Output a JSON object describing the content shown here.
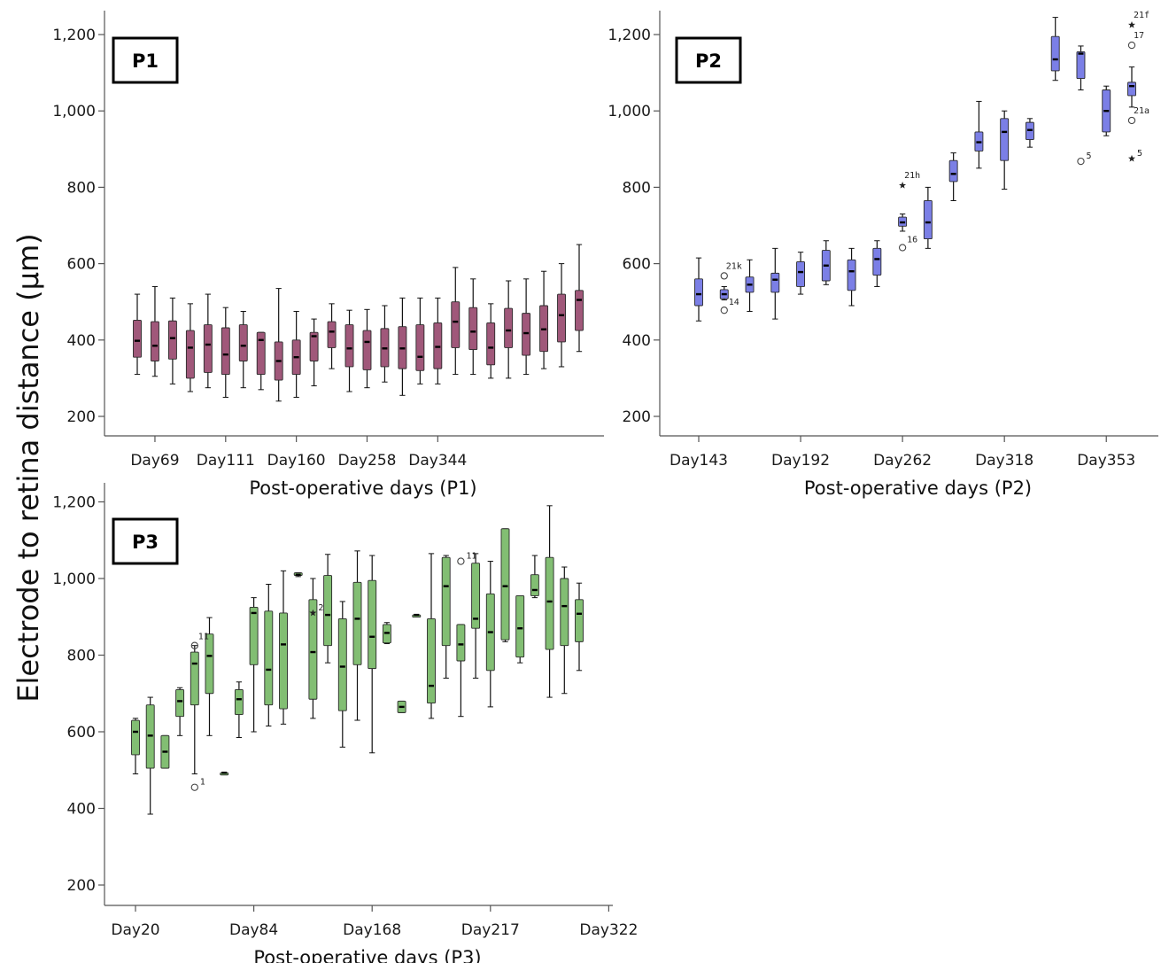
{
  "ylabel": "Electrode to retina distance (μm)",
  "colors": {
    "P1": "#a0587a",
    "P2": "#7b7fe6",
    "P3": "#82be73",
    "axis": "#555555",
    "whisker": "#111111"
  },
  "chart_data": [
    {
      "type": "box",
      "panel": "P1",
      "xlabel": "Post-operative days (P1)",
      "ylim": [
        150,
        1260
      ],
      "yticks": [
        200,
        400,
        600,
        800,
        1000,
        1200
      ],
      "ytick_labels": [
        "200",
        "400",
        "600",
        "800",
        "1,000",
        "1,200"
      ],
      "xtick_labels": [
        {
          "index": 1,
          "label": "Day69"
        },
        {
          "index": 5,
          "label": "Day111"
        },
        {
          "index": 9,
          "label": "Day160"
        },
        {
          "index": 13,
          "label": "Day258"
        },
        {
          "index": 17,
          "label": "Day344"
        }
      ],
      "boxes": [
        {
          "i": 0,
          "min": 310,
          "q1": 355,
          "median": 398,
          "q3": 452,
          "max": 520
        },
        {
          "i": 1,
          "min": 305,
          "q1": 345,
          "median": 385,
          "q3": 448,
          "max": 540
        },
        {
          "i": 2,
          "min": 285,
          "q1": 350,
          "median": 405,
          "q3": 450,
          "max": 510
        },
        {
          "i": 3,
          "min": 265,
          "q1": 300,
          "median": 380,
          "q3": 425,
          "max": 495
        },
        {
          "i": 4,
          "min": 275,
          "q1": 315,
          "median": 388,
          "q3": 440,
          "max": 520
        },
        {
          "i": 5,
          "min": 250,
          "q1": 310,
          "median": 362,
          "q3": 432,
          "max": 485
        },
        {
          "i": 6,
          "min": 275,
          "q1": 345,
          "median": 385,
          "q3": 440,
          "max": 475
        },
        {
          "i": 7,
          "min": 270,
          "q1": 310,
          "median": 400,
          "q3": 420,
          "max": 420
        },
        {
          "i": 8,
          "min": 240,
          "q1": 295,
          "median": 345,
          "q3": 395,
          "max": 535
        },
        {
          "i": 9,
          "min": 250,
          "q1": 310,
          "median": 355,
          "q3": 400,
          "max": 475
        },
        {
          "i": 10,
          "min": 280,
          "q1": 345,
          "median": 410,
          "q3": 420,
          "max": 455
        },
        {
          "i": 11,
          "min": 325,
          "q1": 380,
          "median": 422,
          "q3": 448,
          "max": 495
        },
        {
          "i": 12,
          "min": 265,
          "q1": 330,
          "median": 378,
          "q3": 440,
          "max": 478
        },
        {
          "i": 13,
          "min": 275,
          "q1": 322,
          "median": 395,
          "q3": 425,
          "max": 480
        },
        {
          "i": 14,
          "min": 290,
          "q1": 330,
          "median": 378,
          "q3": 430,
          "max": 490
        },
        {
          "i": 15,
          "min": 255,
          "q1": 325,
          "median": 378,
          "q3": 435,
          "max": 510
        },
        {
          "i": 16,
          "min": 285,
          "q1": 320,
          "median": 356,
          "q3": 440,
          "max": 510
        },
        {
          "i": 17,
          "min": 285,
          "q1": 325,
          "median": 382,
          "q3": 445,
          "max": 510
        },
        {
          "i": 18,
          "min": 310,
          "q1": 380,
          "median": 448,
          "q3": 500,
          "max": 590
        },
        {
          "i": 19,
          "min": 310,
          "q1": 375,
          "median": 422,
          "q3": 485,
          "max": 560
        },
        {
          "i": 20,
          "min": 300,
          "q1": 335,
          "median": 380,
          "q3": 445,
          "max": 495
        },
        {
          "i": 21,
          "min": 300,
          "q1": 380,
          "median": 425,
          "q3": 483,
          "max": 555
        },
        {
          "i": 22,
          "min": 310,
          "q1": 360,
          "median": 418,
          "q3": 470,
          "max": 560
        },
        {
          "i": 23,
          "min": 325,
          "q1": 370,
          "median": 428,
          "q3": 490,
          "max": 580
        },
        {
          "i": 24,
          "min": 330,
          "q1": 395,
          "median": 465,
          "q3": 520,
          "max": 600
        },
        {
          "i": 25,
          "min": 370,
          "q1": 425,
          "median": 505,
          "q3": 530,
          "max": 650
        }
      ]
    },
    {
      "type": "box",
      "panel": "P2",
      "xlabel": "Post-operative days (P2)",
      "ylim": [
        150,
        1260
      ],
      "yticks": [
        200,
        400,
        600,
        800,
        1000,
        1200
      ],
      "ytick_labels": [
        "200",
        "400",
        "600",
        "800",
        "1,000",
        "1,200"
      ],
      "xtick_labels": [
        {
          "index": 0,
          "label": "Day143"
        },
        {
          "index": 4,
          "label": "Day192"
        },
        {
          "index": 8,
          "label": "Day262"
        },
        {
          "index": 12,
          "label": "Day318"
        },
        {
          "index": 16,
          "label": "Day353"
        }
      ],
      "boxes": [
        {
          "i": 0,
          "min": 450,
          "q1": 490,
          "median": 520,
          "q3": 560,
          "max": 615
        },
        {
          "i": 1,
          "min": 505,
          "q1": 508,
          "median": 520,
          "q3": 532,
          "max": 540
        },
        {
          "i": 2,
          "min": 475,
          "q1": 525,
          "median": 545,
          "q3": 565,
          "max": 610
        },
        {
          "i": 3,
          "min": 455,
          "q1": 525,
          "median": 558,
          "q3": 575,
          "max": 640
        },
        {
          "i": 4,
          "min": 520,
          "q1": 540,
          "median": 578,
          "q3": 605,
          "max": 630
        },
        {
          "i": 5,
          "min": 545,
          "q1": 555,
          "median": 595,
          "q3": 635,
          "max": 660
        },
        {
          "i": 6,
          "min": 490,
          "q1": 530,
          "median": 580,
          "q3": 610,
          "max": 640
        },
        {
          "i": 7,
          "min": 540,
          "q1": 570,
          "median": 612,
          "q3": 640,
          "max": 660
        },
        {
          "i": 8,
          "min": 685,
          "q1": 698,
          "median": 708,
          "q3": 722,
          "max": 730
        },
        {
          "i": 9,
          "min": 640,
          "q1": 665,
          "median": 708,
          "q3": 765,
          "max": 800
        },
        {
          "i": 10,
          "min": 765,
          "q1": 815,
          "median": 835,
          "q3": 870,
          "max": 890
        },
        {
          "i": 11,
          "min": 850,
          "q1": 895,
          "median": 918,
          "q3": 945,
          "max": 1025
        },
        {
          "i": 12,
          "min": 795,
          "q1": 870,
          "median": 945,
          "q3": 980,
          "max": 1000
        },
        {
          "i": 13,
          "min": 905,
          "q1": 925,
          "median": 950,
          "q3": 970,
          "max": 980
        },
        {
          "i": 14,
          "min": 1080,
          "q1": 1105,
          "median": 1135,
          "q3": 1195,
          "max": 1245
        },
        {
          "i": 15,
          "min": 1055,
          "q1": 1085,
          "median": 1150,
          "q3": 1155,
          "max": 1170
        },
        {
          "i": 16,
          "min": 935,
          "q1": 945,
          "median": 1000,
          "q3": 1055,
          "max": 1065
        },
        {
          "i": 17,
          "min": 1010,
          "q1": 1040,
          "median": 1065,
          "q3": 1075,
          "max": 1115
        }
      ],
      "outliers": [
        {
          "i": 1,
          "value": 568,
          "marker": "circle",
          "label": "21k",
          "label_side": "above"
        },
        {
          "i": 1,
          "value": 478,
          "marker": "circle",
          "label": "14",
          "label_side": "upper-right"
        },
        {
          "i": 8,
          "value": 805,
          "marker": "star",
          "label": "21h",
          "label_side": "above"
        },
        {
          "i": 8,
          "value": 642,
          "marker": "circle",
          "label": "16",
          "label_side": "upper-right"
        },
        {
          "i": 15,
          "value": 868,
          "marker": "circle",
          "label": "5",
          "label_side": "right"
        },
        {
          "i": 17,
          "value": 1225,
          "marker": "star",
          "label": "21f",
          "label_side": "above"
        },
        {
          "i": 17,
          "value": 1172,
          "marker": "circle",
          "label": "17",
          "label_side": "above"
        },
        {
          "i": 17,
          "value": 975,
          "marker": "circle",
          "label": "21a",
          "label_side": "above"
        },
        {
          "i": 17,
          "value": 875,
          "marker": "star",
          "label": "5",
          "label_side": "right"
        }
      ]
    },
    {
      "type": "box",
      "panel": "P3",
      "xlabel": "Post-operative days (P3)",
      "ylim": [
        150,
        1220
      ],
      "yticks": [
        200,
        400,
        600,
        800,
        1000,
        1200
      ],
      "ytick_labels": [
        "200",
        "400",
        "600",
        "800",
        "1,000",
        "1,200"
      ],
      "xtick_labels": [
        {
          "index": 0,
          "label": "Day20"
        },
        {
          "index": 8,
          "label": "Day84"
        },
        {
          "index": 16,
          "label": "Day168"
        },
        {
          "index": 24,
          "label": "Day217"
        },
        {
          "index": 32,
          "label": "Day322"
        }
      ],
      "boxes": [
        {
          "i": 0,
          "min": 490,
          "q1": 540,
          "median": 600,
          "q3": 630,
          "max": 635
        },
        {
          "i": 1,
          "min": 385,
          "q1": 505,
          "median": 590,
          "q3": 670,
          "max": 690
        },
        {
          "i": 2,
          "min": 505,
          "q1": 505,
          "median": 548,
          "q3": 590,
          "max": 590
        },
        {
          "i": 3,
          "min": 590,
          "q1": 640,
          "median": 680,
          "q3": 710,
          "max": 715
        },
        {
          "i": 4,
          "min": 490,
          "q1": 670,
          "median": 778,
          "q3": 808,
          "max": 825
        },
        {
          "i": 5,
          "min": 590,
          "q1": 700,
          "median": 798,
          "q3": 855,
          "max": 898
        },
        {
          "i": 6,
          "min": 493,
          "q1": 493,
          "median": 493,
          "q3": 493,
          "max": 493
        },
        {
          "i": 7,
          "min": 585,
          "q1": 645,
          "median": 685,
          "q3": 710,
          "max": 730
        },
        {
          "i": 8,
          "min": 600,
          "q1": 775,
          "median": 910,
          "q3": 925,
          "max": 950
        },
        {
          "i": 9,
          "min": 615,
          "q1": 670,
          "median": 762,
          "q3": 915,
          "max": 985
        },
        {
          "i": 10,
          "min": 620,
          "q1": 660,
          "median": 828,
          "q3": 910,
          "max": 1020
        },
        {
          "i": 11,
          "min": 1005,
          "q1": 1008,
          "median": 1010,
          "q3": 1015,
          "max": 1015
        },
        {
          "i": 12,
          "min": 635,
          "q1": 685,
          "median": 808,
          "q3": 945,
          "max": 1000
        },
        {
          "i": 13,
          "min": 780,
          "q1": 825,
          "median": 905,
          "q3": 1008,
          "max": 1063
        },
        {
          "i": 14,
          "min": 560,
          "q1": 655,
          "median": 770,
          "q3": 895,
          "max": 940
        },
        {
          "i": 15,
          "min": 630,
          "q1": 775,
          "median": 895,
          "q3": 990,
          "max": 1072
        },
        {
          "i": 16,
          "min": 545,
          "q1": 765,
          "median": 848,
          "q3": 995,
          "max": 1060
        },
        {
          "i": 17,
          "min": 830,
          "q1": 832,
          "median": 858,
          "q3": 880,
          "max": 885
        },
        {
          "i": 18,
          "min": 650,
          "q1": 650,
          "median": 665,
          "q3": 680,
          "max": 680
        },
        {
          "i": 19,
          "min": 905,
          "q1": 905,
          "median": 905,
          "q3": 905,
          "max": 905
        },
        {
          "i": 20,
          "min": 635,
          "q1": 675,
          "median": 720,
          "q3": 895,
          "max": 1065
        },
        {
          "i": 21,
          "min": 740,
          "q1": 825,
          "median": 980,
          "q3": 1055,
          "max": 1060
        },
        {
          "i": 22,
          "min": 640,
          "q1": 785,
          "median": 828,
          "q3": 880,
          "max": 880
        },
        {
          "i": 23,
          "min": 740,
          "q1": 870,
          "median": 895,
          "q3": 1040,
          "max": 1065
        },
        {
          "i": 24,
          "min": 665,
          "q1": 760,
          "median": 860,
          "q3": 960,
          "max": 1045
        },
        {
          "i": 25,
          "min": 835,
          "q1": 840,
          "median": 980,
          "q3": 1130,
          "max": 1130
        },
        {
          "i": 26,
          "min": 780,
          "q1": 795,
          "median": 870,
          "q3": 955,
          "max": 955
        },
        {
          "i": 27,
          "min": 950,
          "q1": 955,
          "median": 970,
          "q3": 1010,
          "max": 1060
        },
        {
          "i": 28,
          "min": 690,
          "q1": 815,
          "median": 940,
          "q3": 1055,
          "max": 1190
        },
        {
          "i": 29,
          "min": 700,
          "q1": 825,
          "median": 928,
          "q3": 1000,
          "max": 1030
        },
        {
          "i": 30,
          "min": 760,
          "q1": 835,
          "median": 908,
          "q3": 945,
          "max": 988
        }
      ],
      "outliers": [
        {
          "i": 4,
          "value": 825,
          "marker": "circle",
          "label": "11",
          "label_side": "left"
        },
        {
          "i": 4,
          "value": 455,
          "marker": "circle",
          "label": "1",
          "label_side": "right"
        },
        {
          "i": 12,
          "value": 910,
          "marker": "star",
          "label": "2",
          "label_side": "right"
        },
        {
          "i": 22,
          "value": 1045,
          "marker": "circle",
          "label": "11",
          "label_side": "right"
        }
      ]
    }
  ]
}
